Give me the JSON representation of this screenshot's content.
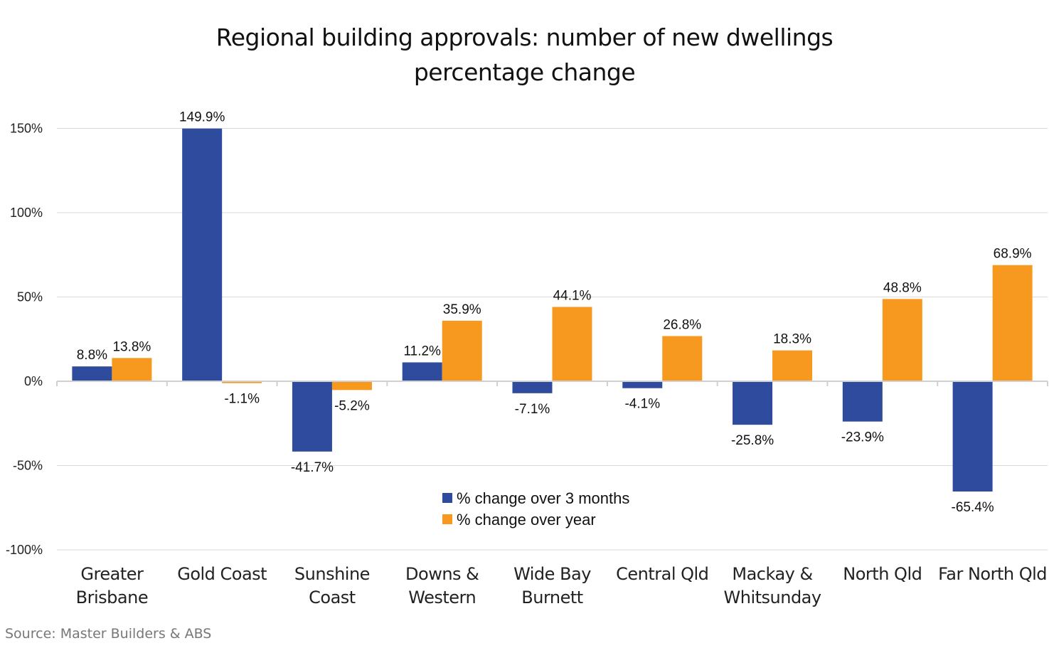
{
  "chart_data": {
    "type": "bar",
    "title": [
      "Regional building approvals: number of new dwellings",
      "percentage change"
    ],
    "categories": [
      [
        "Greater",
        "Brisbane"
      ],
      [
        "Gold Coast"
      ],
      [
        "Sunshine",
        "Coast"
      ],
      [
        "Downs &",
        "Western"
      ],
      [
        "Wide Bay",
        "Burnett"
      ],
      [
        "Central Qld"
      ],
      [
        "Mackay &",
        "Whitsunday"
      ],
      [
        "North Qld"
      ],
      [
        "Far North Qld"
      ]
    ],
    "series": [
      {
        "name": "% change over 3 months",
        "color": "#2F4B9E",
        "values": [
          8.8,
          149.9,
          -41.7,
          11.2,
          -7.1,
          -4.1,
          -25.8,
          -23.9,
          -65.4
        ]
      },
      {
        "name": "% change over year",
        "color": "#F7991F",
        "values": [
          13.8,
          -1.1,
          -5.2,
          35.9,
          44.1,
          26.8,
          18.3,
          48.8,
          68.9
        ]
      }
    ],
    "ylim": [
      -100,
      150
    ],
    "yticks": [
      150,
      100,
      50,
      0,
      -50,
      -100
    ],
    "ytick_labels": [
      "150%",
      "100%",
      "50%",
      "0%",
      "-50%",
      "-100%"
    ],
    "grid": true,
    "legend": "bottom-center",
    "xlabel": "",
    "ylabel": ""
  },
  "source": "Source:  Master Builders & ABS"
}
